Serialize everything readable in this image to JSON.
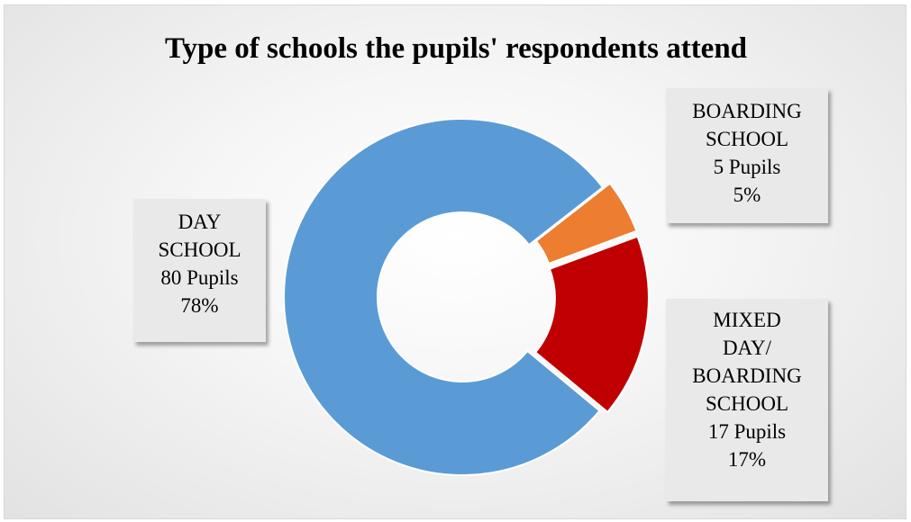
{
  "chart_data": {
    "type": "pie",
    "variant": "donut",
    "title": "Type of schools the pupils' respondents attend",
    "categories": [
      "DAY SCHOOL",
      "BOARDING SCHOOL",
      "MIXED DAY/ BOARDING SCHOOL"
    ],
    "values": [
      80,
      5,
      17
    ],
    "percentages": [
      "78%",
      "5%",
      "17%"
    ],
    "colors": [
      "#5b9bd5",
      "#ed7d31",
      "#c00000"
    ],
    "legend": "none",
    "labels": [
      {
        "lines": [
          "DAY",
          "SCHOOL",
          "80 Pupils",
          "78%"
        ]
      },
      {
        "lines": [
          "BOARDING",
          "SCHOOL",
          "5 Pupils",
          "5%"
        ]
      },
      {
        "lines": [
          "MIXED",
          "DAY/",
          "BOARDING",
          "SCHOOL",
          "17 Pupils",
          "17%"
        ]
      }
    ]
  }
}
